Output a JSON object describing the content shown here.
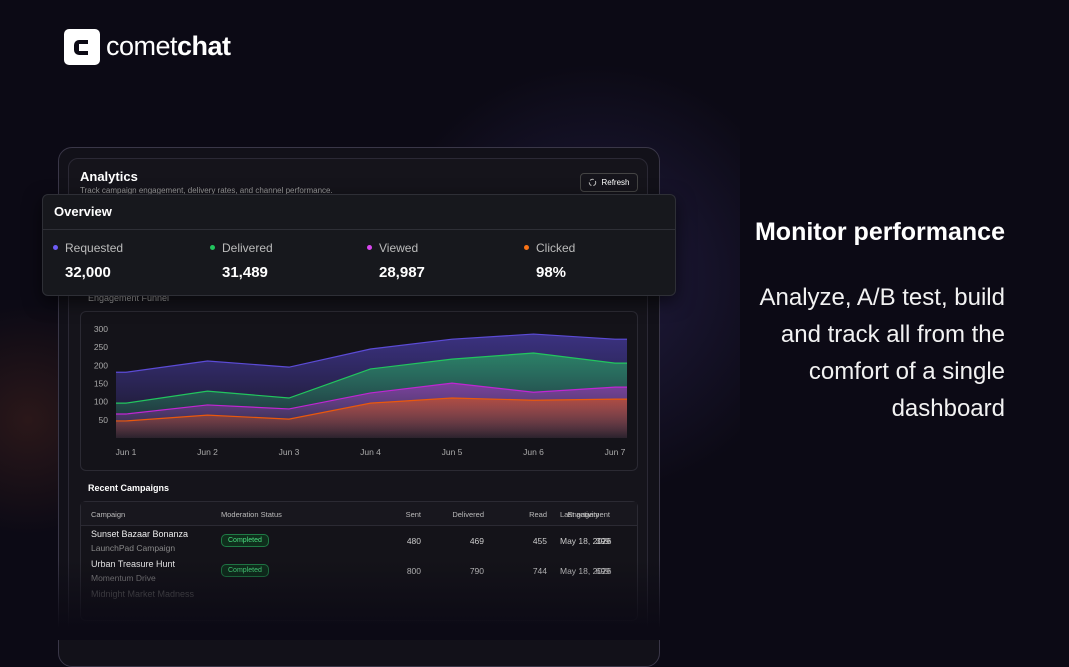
{
  "brand": {
    "light": "comet",
    "bold": "chat"
  },
  "hero": {
    "heading": "Monitor performance",
    "body": "Analyze, A/B test, build and track all from the comfort of a single dashboard"
  },
  "panel": {
    "title": "Analytics",
    "subtitle": "Track campaign engagement, delivery rates, and channel performance.",
    "refresh": "Refresh"
  },
  "overview": {
    "title": "Overview",
    "stats": [
      {
        "label": "Requested",
        "value": "32,000",
        "color": "#6d5cf6"
      },
      {
        "label": "Delivered",
        "value": "31,489",
        "color": "#22c55e"
      },
      {
        "label": "Viewed",
        "value": "28,987",
        "color": "#d946ef"
      },
      {
        "label": "Clicked",
        "value": "98%",
        "color": "#f97316"
      }
    ]
  },
  "chart_data": {
    "type": "area",
    "title": "Engagement Funnel",
    "x": [
      "Jun 1",
      "Jun 2",
      "Jun 3",
      "Jun 4",
      "Jun 5",
      "Jun 6",
      "Jun 7"
    ],
    "ylim": [
      0,
      300
    ],
    "yticks": [
      50,
      100,
      150,
      200,
      250,
      300
    ],
    "series": [
      {
        "name": "Requested",
        "color": "#5b4bd6",
        "values": [
          181,
          212,
          195,
          245,
          272,
          286,
          272
        ]
      },
      {
        "name": "Delivered",
        "color": "#22c55e",
        "values": [
          96,
          129,
          110,
          190,
          217,
          234,
          206
        ]
      },
      {
        "name": "Viewed",
        "color": "#c026d3",
        "values": [
          66,
          91,
          80,
          124,
          151,
          126,
          140
        ]
      },
      {
        "name": "Clicked",
        "color": "#ea580c",
        "values": [
          47,
          63,
          52,
          96,
          110,
          104,
          107
        ]
      }
    ]
  },
  "campaigns": {
    "title": "Recent Campaigns",
    "columns": [
      "Campaign",
      "Moderation Status",
      "Sent",
      "Delivered",
      "Read",
      "Engagement",
      "Last activity"
    ],
    "rows": [
      {
        "name": "Sunset Bazaar Bonanza",
        "group": "LaunchPad Campaign",
        "status": "Completed",
        "sent": 480,
        "delivered": 469,
        "read": 455,
        "engagement": 399,
        "last": "May 18, 2026"
      },
      {
        "name": "Urban Treasure Hunt",
        "group": "Momentum Drive",
        "status": "Completed",
        "sent": 800,
        "delivered": 790,
        "read": 744,
        "engagement": 699,
        "last": "May 18, 2026"
      },
      {
        "name": "Midnight Market Madness"
      }
    ]
  }
}
